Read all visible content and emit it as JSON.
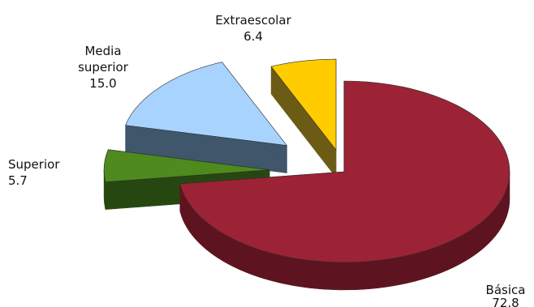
{
  "chart_data": {
    "type": "pie",
    "title": "",
    "slices": [
      {
        "label": "Básica",
        "value": 72.8,
        "value_text": "72.8",
        "color": "#9b2335",
        "side_color": "#5e1420",
        "exploded": false
      },
      {
        "label": "Superior",
        "value": 5.7,
        "value_text": "5.7",
        "color": "#4e8a1e",
        "side_color": "#274711",
        "exploded": true
      },
      {
        "label": "Media superior",
        "label_lines": [
          "Media",
          "superior"
        ],
        "value": 15.0,
        "value_text": "15.0",
        "color": "#a9d3ff",
        "side_color": "#3f566b",
        "exploded": true
      },
      {
        "label": "Extraescolar",
        "value": 6.4,
        "value_text": "6.4",
        "color": "#ffcc00",
        "side_color": "#6b5b14",
        "exploded": true
      }
    ],
    "legend": "none",
    "style": "3d-exploded"
  }
}
